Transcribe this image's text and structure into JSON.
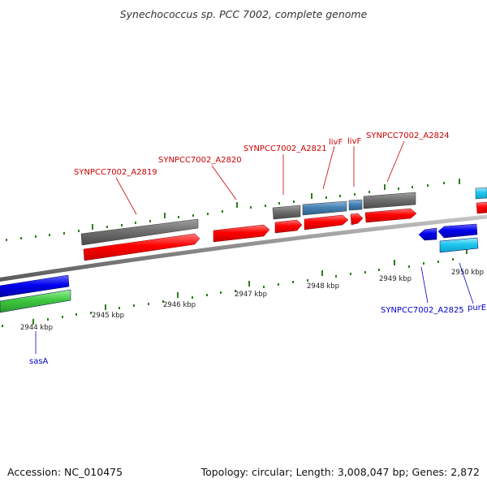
{
  "header": {
    "title": "Synechococcus sp. PCC 7002, complete genome"
  },
  "footer": {
    "accession": "Accession: NC_010475",
    "topology": "Topology: circular; Length: 3,008,047 bp; Genes: 2,872"
  },
  "scale": {
    "tick_labels": [
      "2944 kbp",
      "2945 kbp",
      "2946 kbp",
      "2947 kbp",
      "2948 kbp",
      "2949 kbp",
      "2950 kbp"
    ]
  },
  "gene_labels": {
    "forward": [
      "SYNPCC7002_A2819",
      "SYNPCC7002_A2820",
      "SYNPCC7002_A2821",
      "livF",
      "livF",
      "SYNPCC7002_A2824"
    ],
    "reverse": [
      "SYNPCC7002_A2825",
      "purE",
      "sasA"
    ]
  },
  "colors": {
    "forward_label": "#cc0000",
    "reverse_label": "#0000cc",
    "cds": "#ff0000",
    "gene_grey": "#707070",
    "gene_steelblue": "#4682b4",
    "reverse_blue": "#0000ee",
    "reverse_cyan": "#1ec8f0",
    "green": "#40c840",
    "tick": "#2e7d1e",
    "backbone": "#8a8a8a"
  }
}
